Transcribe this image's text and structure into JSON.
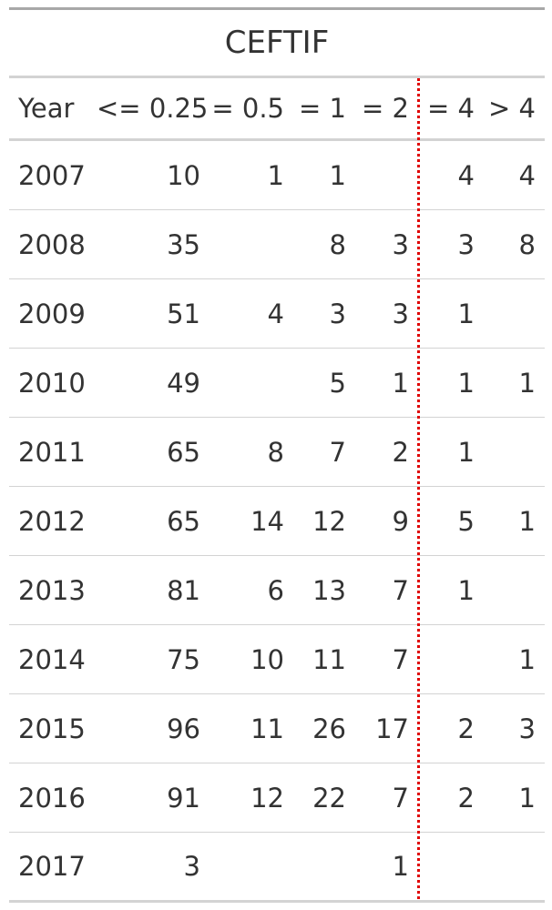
{
  "chart_data": {
    "type": "table",
    "title": "CEFTIF",
    "columns": [
      "Year",
      "<= 0.25",
      "= 0.5",
      "= 1",
      "= 2",
      "= 4",
      "> 4"
    ],
    "rows": [
      [
        "2007",
        "10",
        "1",
        "1",
        "",
        "4",
        "4"
      ],
      [
        "2008",
        "35",
        "",
        "8",
        "3",
        "3",
        "8"
      ],
      [
        "2009",
        "51",
        "4",
        "3",
        "3",
        "1",
        ""
      ],
      [
        "2010",
        "49",
        "",
        "5",
        "1",
        "1",
        "1"
      ],
      [
        "2011",
        "65",
        "8",
        "7",
        "2",
        "1",
        ""
      ],
      [
        "2012",
        "65",
        "14",
        "12",
        "9",
        "5",
        "1"
      ],
      [
        "2013",
        "81",
        "6",
        "13",
        "7",
        "1",
        ""
      ],
      [
        "2014",
        "75",
        "10",
        "11",
        "7",
        "",
        "1"
      ],
      [
        "2015",
        "96",
        "11",
        "26",
        "17",
        "2",
        "3"
      ],
      [
        "2016",
        "91",
        "12",
        "22",
        "7",
        "2",
        "1"
      ],
      [
        "2017",
        "3",
        "",
        "",
        "1",
        "",
        ""
      ]
    ],
    "breakpoint_line": {
      "between_columns": [
        "= 2",
        "= 4"
      ],
      "color": "#e00000",
      "style": "dotted"
    }
  }
}
